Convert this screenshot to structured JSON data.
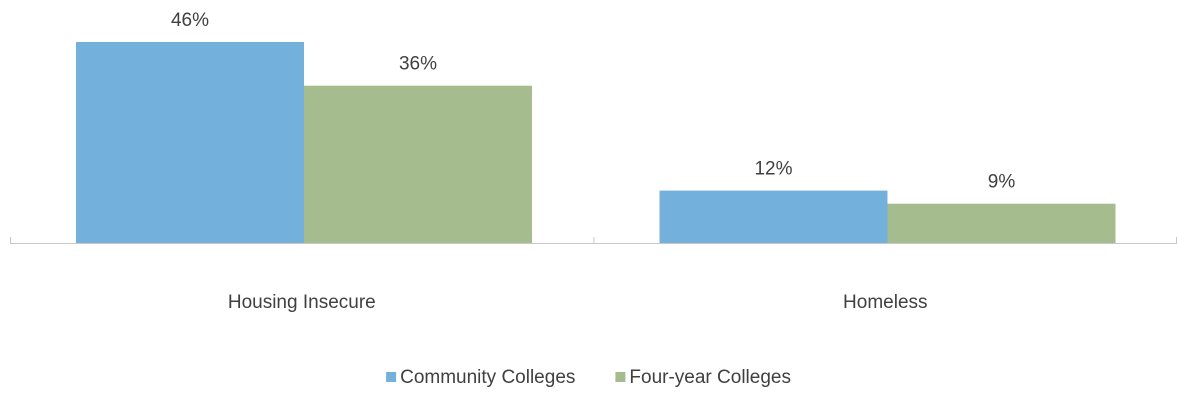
{
  "chart_data": {
    "type": "bar",
    "categories": [
      "Housing Insecure",
      "Homeless"
    ],
    "series": [
      {
        "name": "Community Colleges",
        "values": [
          46,
          12
        ],
        "labels": [
          "46%",
          "12%"
        ],
        "color": "#74b0dc"
      },
      {
        "name": "Four-year Colleges",
        "values": [
          36,
          9
        ],
        "labels": [
          "36%",
          "9%"
        ],
        "color": "#a5bd8e"
      }
    ],
    "title": "",
    "xlabel": "",
    "ylabel": "",
    "ylim": [
      0,
      46
    ],
    "grid": false,
    "legend_position": "bottom",
    "value_format": "percent"
  },
  "colors": {
    "axis": "#c8c8c8",
    "text": "#404040"
  }
}
